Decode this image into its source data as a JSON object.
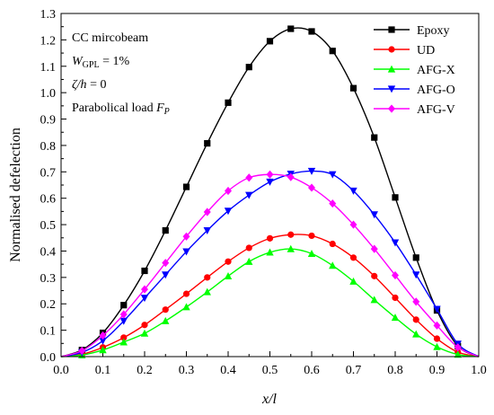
{
  "chart_data": {
    "type": "line",
    "xlabel": "x/l",
    "ylabel": "Normalised defelection",
    "xlim": [
      0.0,
      1.0
    ],
    "ylim": [
      0.0,
      1.3
    ],
    "xticks": [
      "0.0",
      "0.1",
      "0.2",
      "0.3",
      "0.4",
      "0.5",
      "0.6",
      "0.7",
      "0.8",
      "0.9",
      "1.0"
    ],
    "yticks": [
      "0.0",
      "0.1",
      "0.2",
      "0.3",
      "0.4",
      "0.5",
      "0.6",
      "0.7",
      "0.8",
      "0.9",
      "1.0",
      "1.1",
      "1.2",
      "1.3"
    ],
    "legend_position": "top-right",
    "annotations": {
      "line1": "CC mircobeam",
      "line2_main": "W",
      "line2_sub": "GPL",
      "line2_rest": " = 1%",
      "line3_main": "ζ/h",
      "line3_rest": " = 0",
      "line4_main": "Parabolical load ",
      "line4_var": "F",
      "line4_sub": "P"
    },
    "x": [
      0.0,
      0.05,
      0.1,
      0.15,
      0.2,
      0.25,
      0.3,
      0.35,
      0.4,
      0.45,
      0.5,
      0.55,
      0.6,
      0.65,
      0.7,
      0.75,
      0.8,
      0.85,
      0.9,
      0.95,
      1.0
    ],
    "series": [
      {
        "name": "Epoxy",
        "color": "#000000",
        "marker": "square",
        "values": [
          0.0,
          0.025,
          0.09,
          0.195,
          0.325,
          0.478,
          0.643,
          0.808,
          0.962,
          1.097,
          1.195,
          1.242,
          1.232,
          1.158,
          1.017,
          0.83,
          0.603,
          0.375,
          0.175,
          0.04,
          0.0
        ]
      },
      {
        "name": "UD",
        "color": "#ff0000",
        "marker": "circle",
        "values": [
          0.0,
          0.009,
          0.035,
          0.072,
          0.12,
          0.178,
          0.238,
          0.3,
          0.36,
          0.412,
          0.448,
          0.462,
          0.458,
          0.427,
          0.375,
          0.305,
          0.223,
          0.14,
          0.068,
          0.017,
          0.0
        ]
      },
      {
        "name": "AFG-X",
        "color": "#00ff00",
        "marker": "triangle-up",
        "values": [
          0.0,
          0.006,
          0.025,
          0.055,
          0.088,
          0.135,
          0.188,
          0.245,
          0.305,
          0.36,
          0.395,
          0.408,
          0.39,
          0.345,
          0.285,
          0.215,
          0.148,
          0.085,
          0.037,
          0.008,
          0.0
        ]
      },
      {
        "name": "AFG-O",
        "color": "#0000ff",
        "marker": "triangle-down",
        "values": [
          0.0,
          0.016,
          0.06,
          0.135,
          0.222,
          0.31,
          0.398,
          0.478,
          0.552,
          0.612,
          0.662,
          0.692,
          0.703,
          0.69,
          0.628,
          0.538,
          0.432,
          0.31,
          0.18,
          0.048,
          0.0
        ]
      },
      {
        "name": "AFG-V",
        "color": "#ff00ff",
        "marker": "diamond",
        "values": [
          0.0,
          0.022,
          0.08,
          0.16,
          0.255,
          0.355,
          0.455,
          0.548,
          0.628,
          0.678,
          0.69,
          0.68,
          0.64,
          0.58,
          0.5,
          0.408,
          0.308,
          0.208,
          0.118,
          0.035,
          0.0
        ]
      }
    ]
  }
}
